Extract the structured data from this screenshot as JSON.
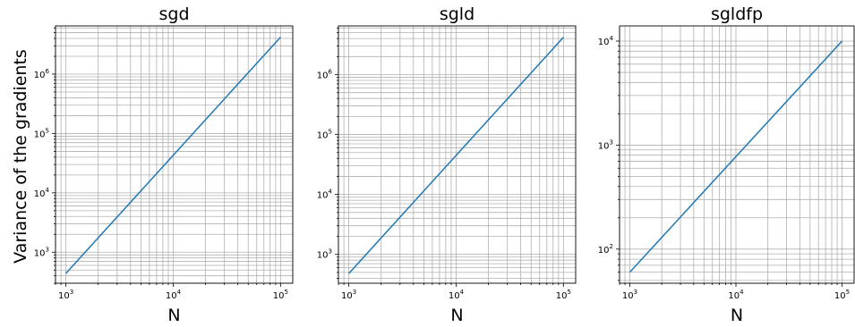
{
  "figure": {
    "ylabel": "Variance of the gradients"
  },
  "chart_data": [
    {
      "type": "line",
      "title": "sgd",
      "xlabel": "N",
      "ylabel": "Variance of the gradients",
      "xscale": "log",
      "yscale": "log",
      "xlim": [
        800,
        130000
      ],
      "ylim": [
        300,
        6500000
      ],
      "grid": "major and minor",
      "x_ticks": [
        1000,
        10000,
        100000
      ],
      "y_ticks": [
        1000,
        10000,
        100000,
        1000000
      ],
      "series": [
        {
          "color": "#1f77b4",
          "x": [
            1000,
            100000
          ],
          "y": [
            440,
            4200000
          ]
        }
      ]
    },
    {
      "type": "line",
      "title": "sgld",
      "xlabel": "N",
      "xscale": "log",
      "yscale": "log",
      "xlim": [
        800,
        130000
      ],
      "ylim": [
        330,
        6500000
      ],
      "grid": "major and minor",
      "x_ticks": [
        1000,
        10000,
        100000
      ],
      "y_ticks": [
        1000,
        10000,
        100000,
        1000000
      ],
      "series": [
        {
          "color": "#1f77b4",
          "x": [
            1000,
            100000
          ],
          "y": [
            480,
            4200000
          ]
        }
      ]
    },
    {
      "type": "line",
      "title": "sgldfp",
      "xlabel": "N",
      "xscale": "log",
      "yscale": "log",
      "xlim": [
        800,
        130000
      ],
      "ylim": [
        47,
        14000
      ],
      "grid": "major and minor",
      "x_ticks": [
        1000,
        10000,
        100000
      ],
      "y_ticks": [
        100,
        1000,
        10000
      ],
      "series": [
        {
          "color": "#1f77b4",
          "x": [
            1000,
            100000
          ],
          "y": [
            60,
            10000
          ]
        }
      ]
    }
  ]
}
